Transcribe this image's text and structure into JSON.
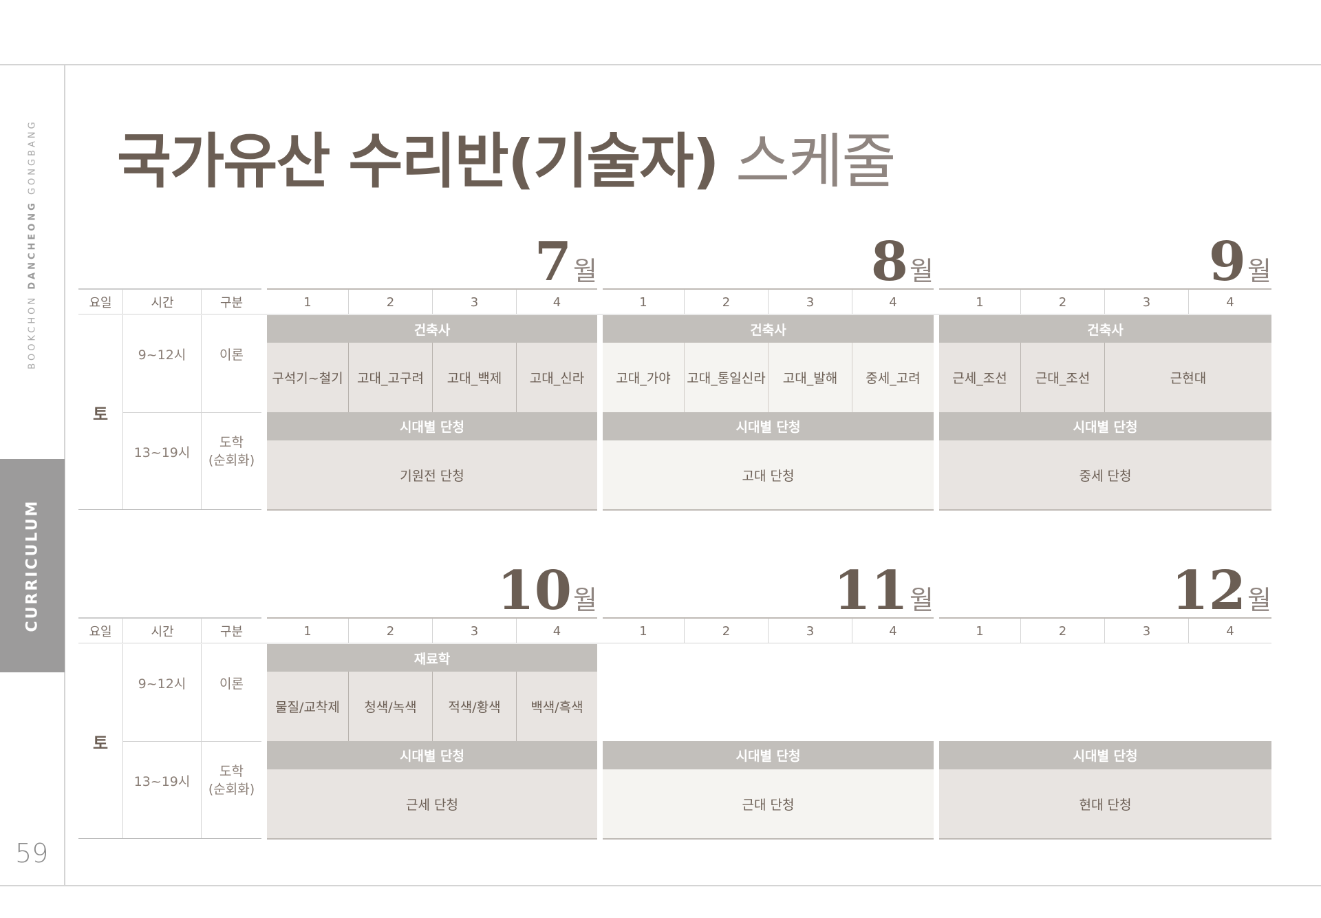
{
  "sidebar": {
    "brand_prefix": "BOOKCHON ",
    "brand_bold": "DANCHEONG",
    "brand_suffix": " GONGBANG",
    "section": "CURRICULUM",
    "page_number": "59"
  },
  "title": {
    "strong": "국가유산 수리반(기술자)",
    "light": " 스케줄"
  },
  "months": {
    "m7": {
      "num": "7",
      "unit": "월"
    },
    "m8": {
      "num": "8",
      "unit": "월"
    },
    "m9": {
      "num": "9",
      "unit": "월"
    },
    "m10": {
      "num": "10",
      "unit": "월"
    },
    "m11": {
      "num": "11",
      "unit": "월"
    },
    "m12": {
      "num": "12",
      "unit": "월"
    }
  },
  "headers": {
    "day": "요일",
    "time": "시간",
    "category": "구분",
    "weeks": [
      "1",
      "2",
      "3",
      "4"
    ]
  },
  "rows": {
    "day": "토",
    "morning_time": "9~12시",
    "morning_type": "이론",
    "afternoon_time": "13~19시",
    "afternoon_type_1": "도학",
    "afternoon_type_2": "(순회화)"
  },
  "schedule_top": {
    "m7": {
      "theory_band": "건축사",
      "theory": [
        "구석기~철기",
        "고대_고구려",
        "고대_백제",
        "고대_신라"
      ],
      "practice_band": "시대별 단청",
      "practice": "기원전 단청"
    },
    "m8": {
      "theory_band": "건축사",
      "theory": [
        "고대_가야",
        "고대_통일신라",
        "고대_발해",
        "중세_고려"
      ],
      "practice_band": "시대별 단청",
      "practice": "고대 단청"
    },
    "m9": {
      "theory_band": "건축사",
      "theory": [
        "근세_조선",
        "근대_조선",
        "근현대"
      ],
      "practice_band": "시대별 단청",
      "practice": "중세 단청"
    }
  },
  "schedule_bottom": {
    "m10": {
      "theory_band": "재료학",
      "theory": [
        "물질/교착제",
        "청색/녹색",
        "적색/황색",
        "백색/흑색"
      ],
      "practice_band": "시대별 단청",
      "practice": "근세 단청"
    },
    "m11": {
      "practice_band": "시대별 단청",
      "practice": "근대 단청"
    },
    "m12": {
      "practice_band": "시대별 단청",
      "practice": "현대 단청"
    }
  }
}
